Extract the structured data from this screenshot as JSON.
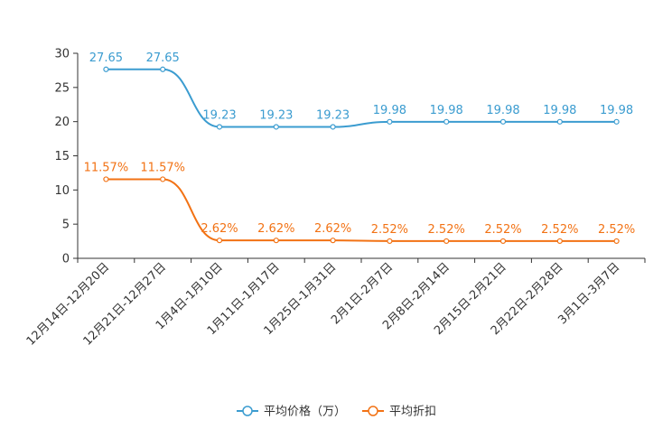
{
  "chart_data": {
    "type": "line",
    "title": "",
    "xlabel": "",
    "ylabel": "",
    "ylim": [
      0,
      30
    ],
    "yticks": [
      0,
      5,
      10,
      15,
      20,
      25,
      30
    ],
    "categories": [
      "12月14日-12月20日",
      "12月21日-12月27日",
      "1月4日-1月10日",
      "1月11日-1月17日",
      "1月25日-1月31日",
      "2月1日-2月7日",
      "2月8日-2月14日",
      "2月15日-2月21日",
      "2月22日-2月28日",
      "3月1日-3月7日"
    ],
    "series": [
      {
        "name": "平均价格（万）",
        "color": "#3b9cd0",
        "values": [
          27.65,
          27.65,
          19.23,
          19.23,
          19.23,
          19.98,
          19.98,
          19.98,
          19.98,
          19.98
        ],
        "labels": [
          "27.65",
          "27.65",
          "19.23",
          "19.23",
          "19.23",
          "19.98",
          "19.98",
          "19.98",
          "19.98",
          "19.98"
        ]
      },
      {
        "name": "平均折扣",
        "color": "#f27214",
        "values": [
          11.57,
          11.57,
          2.62,
          2.62,
          2.62,
          2.52,
          2.52,
          2.52,
          2.52,
          2.52
        ],
        "labels": [
          "11.57%",
          "11.57%",
          "2.62%",
          "2.62%",
          "2.62%",
          "2.52%",
          "2.52%",
          "2.52%",
          "2.52%",
          "2.52%"
        ]
      }
    ],
    "grid": false,
    "legend_position": "bottom-center"
  }
}
